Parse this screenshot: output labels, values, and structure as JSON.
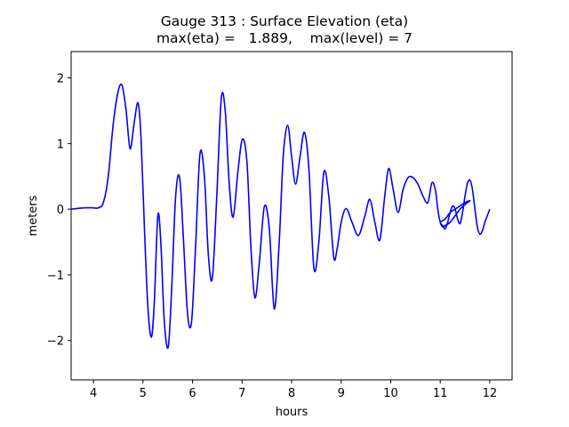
{
  "chart_data": {
    "type": "line",
    "title": "Gauge 313 : Surface Elevation (eta)",
    "subtitle": "max(eta) =   1.889,    max(level) = 7",
    "xlabel": "hours",
    "ylabel": "meters",
    "xlim": [
      3.55,
      12.45
    ],
    "ylim": [
      -2.6,
      2.4
    ],
    "xticks": [
      4,
      5,
      6,
      7,
      8,
      9,
      10,
      11,
      12
    ],
    "yticks": [
      2,
      1,
      0,
      -1,
      -2
    ],
    "ytick_labels": [
      "2",
      "1",
      "0",
      "−1",
      "−2"
    ],
    "grid": false,
    "series": [
      {
        "color": "#0000ff",
        "x": [
          3.55,
          3.8,
          4.0,
          4.1,
          4.2,
          4.3,
          4.4,
          4.5,
          4.58,
          4.66,
          4.74,
          4.82,
          4.9,
          4.96,
          5.03,
          5.1,
          5.17,
          5.23,
          5.3,
          5.36,
          5.43,
          5.51,
          5.58,
          5.66,
          5.74,
          5.82,
          5.9,
          5.98,
          6.06,
          6.15,
          6.24,
          6.32,
          6.4,
          6.49,
          6.58,
          6.66,
          6.74,
          6.82,
          6.92,
          7.01,
          7.1,
          7.18,
          7.26,
          7.35,
          7.45,
          7.55,
          7.65,
          7.75,
          7.83,
          7.92,
          8.0,
          8.08,
          8.17,
          8.26,
          8.35,
          8.45,
          8.55,
          8.65,
          8.75,
          8.85,
          8.92,
          9.0,
          9.1,
          9.22,
          9.35,
          9.48,
          9.58,
          9.68,
          9.78,
          9.88,
          9.96,
          10.05,
          10.15,
          10.25,
          10.35,
          10.45,
          10.55,
          10.65,
          10.75,
          10.83,
          10.9,
          10.95,
          11.0,
          11.05,
          11.1,
          11.2,
          11.3,
          11.4,
          11.5,
          11.55,
          11.6,
          11.5,
          11.4,
          11.3,
          11.2,
          11.1,
          11.0,
          11.05,
          11.1,
          11.15,
          11.2,
          11.25,
          11.3,
          11.35,
          11.4,
          11.45,
          11.5,
          11.55,
          11.6,
          11.65,
          11.7,
          11.75,
          11.8,
          11.85,
          11.9,
          11.95,
          12.0
        ],
        "y": [
          0.0,
          0.02,
          0.02,
          0.02,
          0.1,
          0.5,
          1.3,
          1.8,
          1.88,
          1.5,
          0.92,
          1.3,
          1.62,
          1.1,
          -0.3,
          -1.5,
          -1.95,
          -1.4,
          -0.1,
          -0.5,
          -1.7,
          -2.1,
          -1.2,
          0.2,
          0.48,
          -0.5,
          -1.6,
          -1.72,
          -0.6,
          0.84,
          0.5,
          -0.7,
          -1.05,
          0.2,
          1.68,
          1.5,
          0.4,
          -0.12,
          0.6,
          1.07,
          0.7,
          -0.6,
          -1.35,
          -0.8,
          0.04,
          -0.3,
          -1.52,
          -0.5,
          0.8,
          1.28,
          0.8,
          0.38,
          0.8,
          1.17,
          0.6,
          -0.9,
          -0.5,
          0.56,
          0.2,
          -0.73,
          -0.6,
          -0.2,
          0.01,
          -0.2,
          -0.4,
          -0.1,
          0.15,
          -0.2,
          -0.47,
          0.2,
          0.62,
          0.3,
          -0.05,
          0.3,
          0.48,
          0.48,
          0.38,
          0.2,
          0.1,
          0.4,
          0.3,
          0.0,
          -0.2,
          -0.27,
          -0.25,
          -0.2,
          -0.1,
          0.0,
          0.07,
          0.1,
          0.13,
          0.1,
          0.05,
          0.0,
          -0.05,
          -0.15,
          -0.2,
          -0.25,
          -0.3,
          -0.2,
          -0.05,
          0.05,
          0.0,
          -0.15,
          -0.22,
          -0.05,
          0.2,
          0.4,
          0.44,
          0.3,
          0.0,
          -0.28,
          -0.38,
          -0.33,
          -0.2,
          -0.1,
          0.0
        ]
      }
    ]
  }
}
